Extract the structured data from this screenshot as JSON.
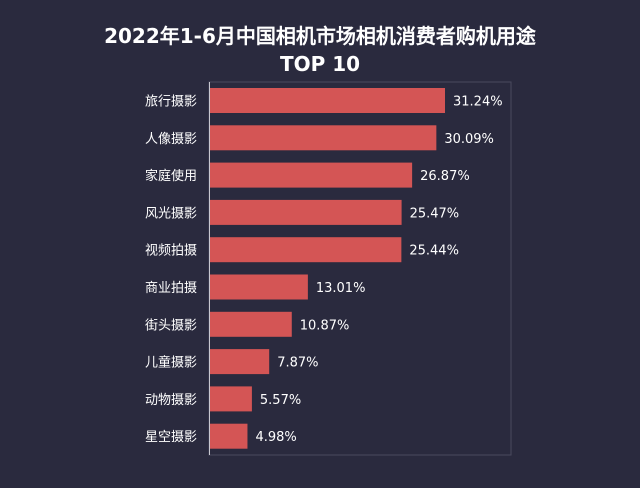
{
  "chart_data": {
    "type": "bar",
    "orientation": "horizontal",
    "title": "2022年1-6月中国相机市场相机消费者购机用途",
    "subtitle": "TOP 10",
    "categories": [
      "旅行摄影",
      "人像摄影",
      "家庭使用",
      "风光摄影",
      "视频拍摄",
      "商业拍摄",
      "街头摄影",
      "儿童摄影",
      "动物摄影",
      "星空摄影"
    ],
    "values": [
      31.24,
      30.09,
      26.87,
      25.47,
      25.44,
      13.01,
      10.87,
      7.87,
      5.57,
      4.98
    ],
    "data_labels": [
      "31.24%",
      "30.09%",
      "26.87%",
      "25.47%",
      "25.44%",
      "13.01%",
      "10.87%",
      "7.87%",
      "5.57%",
      "4.98%"
    ],
    "xlabel": "",
    "ylabel": "",
    "grid": false,
    "colors": {
      "background": "#2a2a3e",
      "bar": "#d45555",
      "text": "#ffffff"
    }
  }
}
